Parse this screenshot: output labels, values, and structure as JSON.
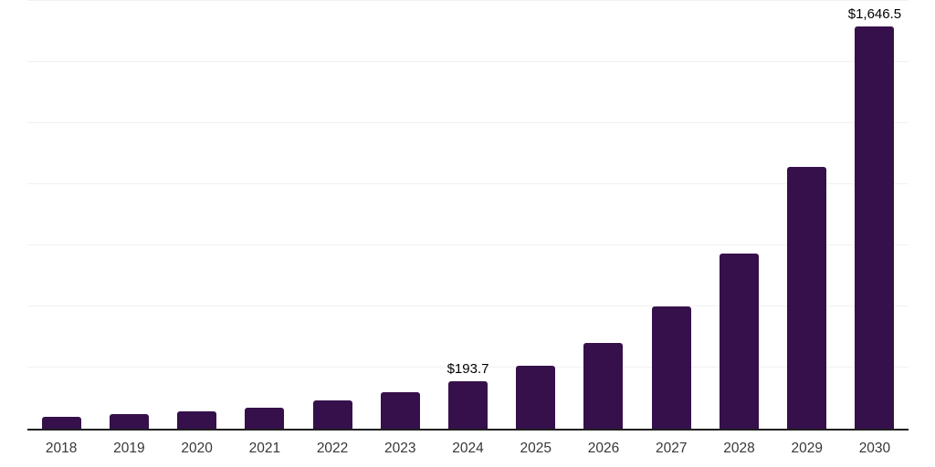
{
  "chart_data": {
    "type": "bar",
    "title": "",
    "xlabel": "",
    "ylabel": "",
    "categories": [
      "2018",
      "2019",
      "2020",
      "2021",
      "2022",
      "2023",
      "2024",
      "2025",
      "2026",
      "2027",
      "2028",
      "2029",
      "2030"
    ],
    "values": [
      50,
      59,
      70,
      85,
      116,
      149,
      193.7,
      256,
      351,
      500,
      715,
      1070,
      1646.5
    ],
    "data_labels": [
      "",
      "",
      "",
      "",
      "",
      "",
      "$193.7",
      "",
      "",
      "",
      "",
      "",
      "$1,646.5"
    ],
    "ylim": [
      0,
      1750
    ],
    "ytick_step": 250,
    "grid": true,
    "legend": false,
    "colors": {
      "bar": "#36104a",
      "gridline": "#f1f1f1",
      "axis_line": "#1f1f1f",
      "value_label": "#000000",
      "tick_label": "#383838"
    }
  }
}
